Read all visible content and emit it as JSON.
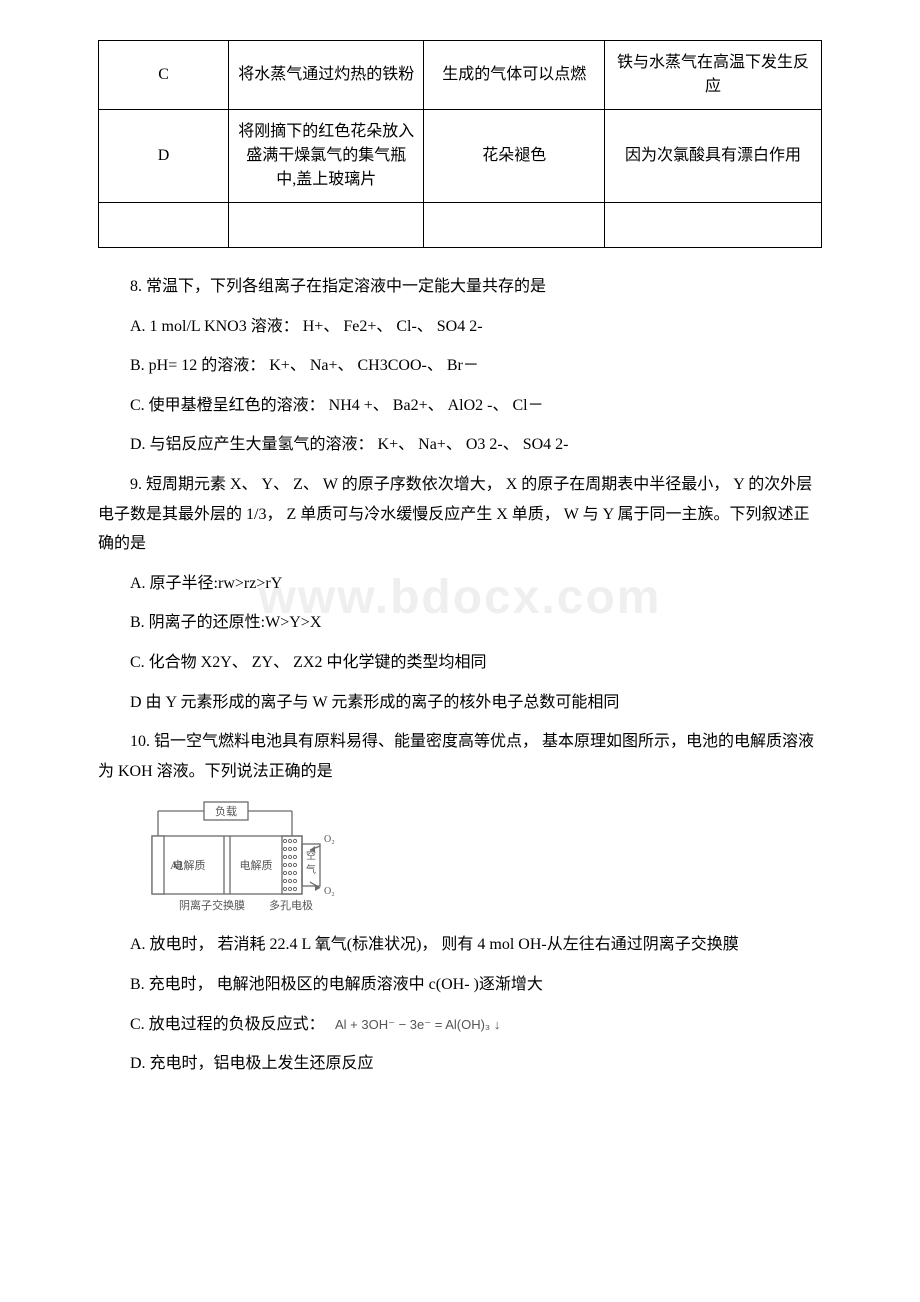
{
  "watermark": "www.bdocx.com",
  "table": {
    "rows": [
      {
        "label": "C",
        "operation": "将水蒸气通过灼热的铁粉",
        "phenomenon": "生成的气体可以点燃",
        "conclusion": "铁与水蒸气在高温下发生反应"
      },
      {
        "label": "D",
        "operation": "将刚摘下的红色花朵放入盛满干燥氯气的集气瓶中,盖上玻璃片",
        "phenomenon": "花朵褪色",
        "conclusion": "因为次氯酸具有漂白作用"
      }
    ]
  },
  "q8": {
    "stem": "8. 常温下，下列各组离子在指定溶液中一定能大量共存的是",
    "a": " A. 1 mol/L KNO3 溶液： H+、 Fe2+、 Cl-、 SO4 2-",
    "b": " B. pH= 12 的溶液： K+、 Na+、 CH3COO-、 Br－",
    "c": "C. 使甲基橙呈红色的溶液： NH4 +、 Ba2+、 AlO2 -、 Cl－",
    "d": "D. 与铝反应产生大量氢气的溶液： K+、 Na+、 O3 2-、 SO4 2-"
  },
  "q9": {
    "stem": "9. 短周期元素 X、 Y、 Z、 W 的原子序数依次增大， X 的原子在周期表中半径最小， Y 的次外层电子数是其最外层的 1/3， Z 单质可与冷水缓慢反应产生 X 单质， W 与 Y 属于同一主族。下列叙述正确的是",
    "a": "A. 原子半径:rw>rz>rY",
    "b": "B. 阴离子的还原性:W>Y>X",
    "c": " C. 化合物 X2Y、 ZY、 ZX2 中化学键的类型均相同",
    "d": "D 由 Y 元素形成的离子与 W 元素形成的离子的核外电子总数可能相同"
  },
  "q10": {
    "stem": "10. 铝一空气燃料电池具有原料易得、能量密度高等优点， 基本原理如图所示，电池的电解质溶液为 KOH 溶液。下列说法正确的是",
    "a": "   A. 放电时， 若消耗 22.4 L 氧气(标准状况)， 则有 4 mol OH-从左往右通过阴离子交换膜",
    "b": "B. 充电时， 电解池阳极区的电解质溶液中 c(OH- )逐渐增大",
    "c": "C. 放电过程的负极反应式：",
    "d": "D. 充电时，铝电极上发生还原反应"
  },
  "figure": {
    "labels": {
      "load": "负载",
      "al": "Al",
      "electrolyte": "电解质",
      "o2": "O₂",
      "air": "空气",
      "membrane": "阴离子交换膜",
      "porous": "多孔电极"
    },
    "colors": {
      "stroke": "#6b6b6b",
      "fill_label_bg": "#ffffff",
      "text": "#555555"
    }
  },
  "equation": {
    "text": "Al + 3OH⁻ − 3e⁻ = Al(OH)₃ ↓",
    "color": "#555555",
    "bg": "#ffffff",
    "fontsize": 13
  }
}
